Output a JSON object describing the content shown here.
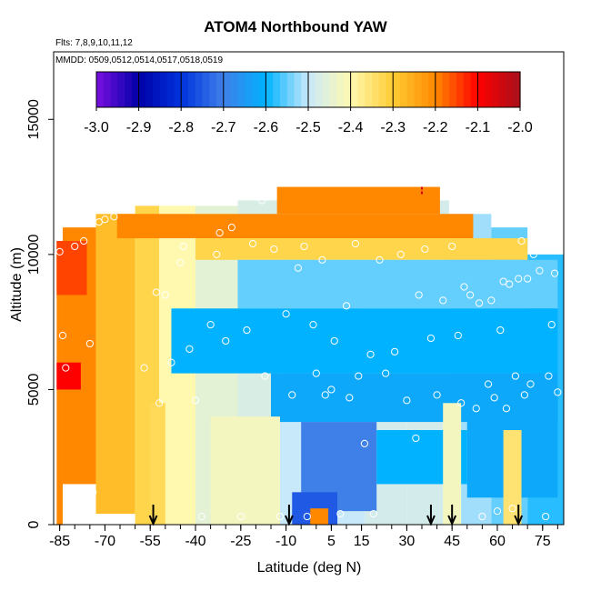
{
  "chart_data": {
    "type": "heatmap",
    "title": "ATOM4 Northbound YAW",
    "subtitle_flights": "Flts: 7,8,9,10,11,12",
    "subtitle_dates": "MMDD: 0509,0512,0514,0517,0518,0519",
    "xlabel": "Latitude (deg N)",
    "ylabel": "Altitude (m)",
    "xlim": [
      -87,
      82
    ],
    "ylim": [
      0,
      17500
    ],
    "x_ticks": [
      -85,
      -70,
      -55,
      -40,
      -25,
      -10,
      5,
      15,
      30,
      45,
      60,
      75
    ],
    "x_tick_labels": [
      "-85",
      "-70",
      "-55",
      "-40",
      "-25",
      "-10",
      "5",
      "15",
      "30",
      "45",
      "60",
      "75"
    ],
    "y_ticks": [
      0,
      5000,
      10000,
      15000
    ],
    "y_tick_labels": [
      "0",
      "5000",
      "10000",
      "15000"
    ],
    "colorbar": {
      "min": -3.0,
      "max": -2.0,
      "ticks": [
        -3.0,
        -2.9,
        -2.8,
        -2.7,
        -2.6,
        -2.5,
        -2.4,
        -2.3,
        -2.2,
        -2.1,
        -2.0
      ],
      "tick_labels": [
        "-3.0",
        "-2.9",
        "-2.8",
        "-2.7",
        "-2.6",
        "-2.5",
        "-2.4",
        "-2.3",
        "-2.2",
        "-2.1",
        "-2.0"
      ],
      "colors": [
        "#7a0fe0",
        "#0000a8",
        "#0033dd",
        "#3f7fe8",
        "#00b2ff",
        "#c8e9fa",
        "#fff9b0",
        "#ffcc33",
        "#ff8800",
        "#ff0000",
        "#a8101a"
      ]
    },
    "profile_arrow_latitudes": [
      -54,
      -9,
      38,
      45,
      67
    ],
    "marker_latitude": 35,
    "marker_altitude": 12200,
    "cells": [
      {
        "lat": [
          -86,
          -84
        ],
        "alt": [
          0,
          10500
        ],
        "value": -2.2
      },
      {
        "lat": [
          -84,
          -73
        ],
        "alt": [
          1500,
          11000
        ],
        "value": -2.2
      },
      {
        "lat": [
          -86,
          -78
        ],
        "alt": [
          5000,
          6000
        ],
        "value": -2.1
      },
      {
        "lat": [
          -86,
          -76
        ],
        "alt": [
          8500,
          10500
        ],
        "value": -2.15
      },
      {
        "lat": [
          -73,
          -60
        ],
        "alt": [
          400,
          11500
        ],
        "value": -2.28
      },
      {
        "lat": [
          -60,
          -52
        ],
        "alt": [
          0,
          11800
        ],
        "value": -2.32
      },
      {
        "lat": [
          -52,
          -40
        ],
        "alt": [
          0,
          11800
        ],
        "value": -2.4
      },
      {
        "lat": [
          -40,
          -26
        ],
        "alt": [
          0,
          11800
        ],
        "value": -2.45
      },
      {
        "lat": [
          -26,
          -12
        ],
        "alt": [
          0,
          12000
        ],
        "value": -2.47
      },
      {
        "lat": [
          -12,
          2
        ],
        "alt": [
          0,
          12000
        ],
        "value": -2.5
      },
      {
        "lat": [
          2,
          16
        ],
        "alt": [
          0,
          12000
        ],
        "value": -2.5
      },
      {
        "lat": [
          16,
          30
        ],
        "alt": [
          0,
          12000
        ],
        "value": -2.48
      },
      {
        "lat": [
          30,
          44
        ],
        "alt": [
          0,
          12000
        ],
        "value": -2.48
      },
      {
        "lat": [
          44,
          58
        ],
        "alt": [
          0,
          11500
        ],
        "value": -2.52
      },
      {
        "lat": [
          58,
          70
        ],
        "alt": [
          0,
          11000
        ],
        "value": -2.55
      },
      {
        "lat": [
          70,
          82
        ],
        "alt": [
          0,
          10000
        ],
        "value": -2.58
      },
      {
        "lat": [
          -13,
          41
        ],
        "alt": [
          11500,
          12500
        ],
        "value": -2.2
      },
      {
        "lat": [
          -66,
          52
        ],
        "alt": [
          10600,
          11500
        ],
        "value": -2.2
      },
      {
        "lat": [
          -40,
          70
        ],
        "alt": [
          9800,
          10600
        ],
        "value": -2.32
      },
      {
        "lat": [
          -26,
          80
        ],
        "alt": [
          8000,
          9800
        ],
        "value": -2.55
      },
      {
        "lat": [
          -48,
          80
        ],
        "alt": [
          5600,
          8000
        ],
        "value": -2.6
      },
      {
        "lat": [
          -15,
          80
        ],
        "alt": [
          3800,
          5600
        ],
        "value": -2.62
      },
      {
        "lat": [
          -5,
          20
        ],
        "alt": [
          500,
          3800
        ],
        "value": -2.7
      },
      {
        "lat": [
          20,
          50
        ],
        "alt": [
          1500,
          3500
        ],
        "value": -2.6
      },
      {
        "lat": [
          50,
          80
        ],
        "alt": [
          1000,
          5000
        ],
        "value": -2.62
      },
      {
        "lat": [
          -35,
          -12
        ],
        "alt": [
          0,
          4000
        ],
        "value": -2.42
      },
      {
        "lat": [
          -55,
          -50
        ],
        "alt": [
          0,
          4500
        ],
        "value": -2.33
      },
      {
        "lat": [
          -8,
          7
        ],
        "alt": [
          0,
          1200
        ],
        "value": -2.75
      },
      {
        "lat": [
          -2,
          4
        ],
        "alt": [
          0,
          600
        ],
        "value": -2.2
      },
      {
        "lat": [
          62,
          68
        ],
        "alt": [
          0,
          3500
        ],
        "value": -2.35
      },
      {
        "lat": [
          42,
          48
        ],
        "alt": [
          0,
          4500
        ],
        "value": -2.42
      }
    ],
    "points": [
      {
        "lat": -85,
        "alt": 10100
      },
      {
        "lat": -84,
        "alt": 7000
      },
      {
        "lat": -83,
        "alt": 5800
      },
      {
        "lat": -80,
        "alt": 10300
      },
      {
        "lat": -77,
        "alt": 10500
      },
      {
        "lat": -75,
        "alt": 6700
      },
      {
        "lat": -74,
        "alt": 1200
      },
      {
        "lat": -72,
        "alt": 11200
      },
      {
        "lat": -70,
        "alt": 11300
      },
      {
        "lat": -67,
        "alt": 11400
      },
      {
        "lat": -57,
        "alt": 5800
      },
      {
        "lat": -53,
        "alt": 8600
      },
      {
        "lat": -52,
        "alt": 4500
      },
      {
        "lat": -50,
        "alt": 8500
      },
      {
        "lat": -48,
        "alt": 6000
      },
      {
        "lat": -45,
        "alt": 9700
      },
      {
        "lat": -44,
        "alt": 10300
      },
      {
        "lat": -42,
        "alt": 6500
      },
      {
        "lat": -40,
        "alt": 4600
      },
      {
        "lat": -38,
        "alt": 300
      },
      {
        "lat": -35,
        "alt": 7400
      },
      {
        "lat": -33,
        "alt": 10000
      },
      {
        "lat": -32,
        "alt": 10800
      },
      {
        "lat": -30,
        "alt": 6800
      },
      {
        "lat": -28,
        "alt": 11000
      },
      {
        "lat": -25,
        "alt": 300
      },
      {
        "lat": -23,
        "alt": 7200
      },
      {
        "lat": -21,
        "alt": 10400
      },
      {
        "lat": -18,
        "alt": 12000
      },
      {
        "lat": -17,
        "alt": 5500
      },
      {
        "lat": -14,
        "alt": 10200
      },
      {
        "lat": -12,
        "alt": 300
      },
      {
        "lat": -10,
        "alt": 7800
      },
      {
        "lat": -8,
        "alt": 4800
      },
      {
        "lat": -6,
        "alt": 9500
      },
      {
        "lat": -4,
        "alt": 10300
      },
      {
        "lat": -3,
        "alt": 300
      },
      {
        "lat": -1,
        "alt": 7400
      },
      {
        "lat": 0,
        "alt": 5600
      },
      {
        "lat": 2,
        "alt": 9800
      },
      {
        "lat": 3,
        "alt": 4800
      },
      {
        "lat": 5,
        "alt": 5000
      },
      {
        "lat": 6,
        "alt": 6800
      },
      {
        "lat": 8,
        "alt": 400
      },
      {
        "lat": 10,
        "alt": 8100
      },
      {
        "lat": 11,
        "alt": 4700
      },
      {
        "lat": 13,
        "alt": 10400
      },
      {
        "lat": 14,
        "alt": 5500
      },
      {
        "lat": 16,
        "alt": 3000
      },
      {
        "lat": 18,
        "alt": 6300
      },
      {
        "lat": 19,
        "alt": 400
      },
      {
        "lat": 21,
        "alt": 9800
      },
      {
        "lat": 23,
        "alt": 5600
      },
      {
        "lat": 26,
        "alt": 6400
      },
      {
        "lat": 28,
        "alt": 10000
      },
      {
        "lat": 30,
        "alt": 4600
      },
      {
        "lat": 33,
        "alt": 3200
      },
      {
        "lat": 34,
        "alt": 8500
      },
      {
        "lat": 36,
        "alt": 10200
      },
      {
        "lat": 38,
        "alt": 6900
      },
      {
        "lat": 40,
        "alt": 4800
      },
      {
        "lat": 42,
        "alt": 8300
      },
      {
        "lat": 45,
        "alt": 10300
      },
      {
        "lat": 47,
        "alt": 7000
      },
      {
        "lat": 48,
        "alt": 4500
      },
      {
        "lat": 49,
        "alt": 8800
      },
      {
        "lat": 51,
        "alt": 8500
      },
      {
        "lat": 53,
        "alt": 4300
      },
      {
        "lat": 54,
        "alt": 8200
      },
      {
        "lat": 55,
        "alt": 300
      },
      {
        "lat": 57,
        "alt": 5200
      },
      {
        "lat": 58,
        "alt": 8300
      },
      {
        "lat": 59,
        "alt": 4700
      },
      {
        "lat": 60,
        "alt": 500
      },
      {
        "lat": 61,
        "alt": 7200
      },
      {
        "lat": 62,
        "alt": 9000
      },
      {
        "lat": 63,
        "alt": 4300
      },
      {
        "lat": 64,
        "alt": 8900
      },
      {
        "lat": 65,
        "alt": 600
      },
      {
        "lat": 66,
        "alt": 5500
      },
      {
        "lat": 67,
        "alt": 9100
      },
      {
        "lat": 68,
        "alt": 10500
      },
      {
        "lat": 69,
        "alt": 4800
      },
      {
        "lat": 70,
        "alt": 9100
      },
      {
        "lat": 71,
        "alt": 5200
      },
      {
        "lat": 72,
        "alt": 10000
      },
      {
        "lat": 74,
        "alt": 9400
      },
      {
        "lat": 76,
        "alt": 300
      },
      {
        "lat": 77,
        "alt": 5500
      },
      {
        "lat": 78,
        "alt": 7400
      },
      {
        "lat": 79,
        "alt": 9300
      },
      {
        "lat": 80,
        "alt": 4900
      }
    ]
  }
}
